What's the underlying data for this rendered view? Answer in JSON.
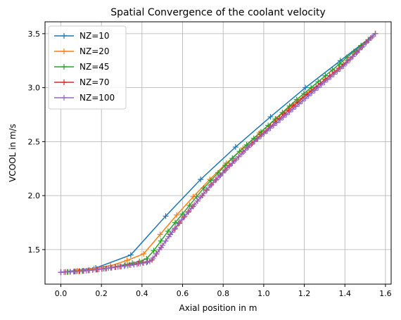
{
  "chart_data": {
    "type": "line",
    "title": "Spatial Convergence of the coolant velocity",
    "xlabel": "Axial position in m",
    "ylabel": "VCOOL in m/s",
    "xlim": [
      -0.078,
      1.628
    ],
    "ylim": [
      1.18,
      3.61
    ],
    "xticks": [
      0.0,
      0.2,
      0.4,
      0.6,
      0.8,
      1.0,
      1.2,
      1.4,
      1.6
    ],
    "xtick_labels": [
      "0.0",
      "0.2",
      "0.4",
      "0.6",
      "0.8",
      "1.0",
      "1.2",
      "1.4",
      "1.6"
    ],
    "yticks": [
      1.5,
      2.0,
      2.5,
      3.0,
      3.5
    ],
    "ytick_labels": [
      "1.5",
      "2.0",
      "2.5",
      "3.0",
      "3.5"
    ],
    "grid": true,
    "legend": "top-left",
    "marker": "+",
    "series": [
      {
        "name": "NZ=10",
        "color": "#1f77b4",
        "x": [
          0.0,
          0.1722,
          0.3444,
          0.5167,
          0.6889,
          0.8611,
          1.0333,
          1.2056,
          1.3778,
          1.55
        ],
        "y": [
          1.29,
          1.33,
          1.45,
          1.81,
          2.15,
          2.45,
          2.73,
          3.0,
          3.25,
          3.5
        ]
      },
      {
        "name": "NZ=20",
        "color": "#ff7f0e",
        "x": [
          0.0,
          0.0816,
          0.1632,
          0.2447,
          0.3263,
          0.4079,
          0.4895,
          0.5711,
          0.6526,
          0.7342,
          0.8158,
          0.8974,
          0.9789,
          1.0605,
          1.1421,
          1.2237,
          1.3053,
          1.3868,
          1.4684,
          1.55
        ],
        "y": [
          1.29,
          1.305,
          1.325,
          1.35,
          1.4,
          1.46,
          1.64,
          1.82,
          1.99,
          2.15,
          2.3,
          2.44,
          2.58,
          2.71,
          2.84,
          2.96,
          3.08,
          3.2,
          3.35,
          3.5
        ]
      },
      {
        "name": "NZ=45",
        "color": "#2ca02c",
        "x": [
          0.0,
          0.0352,
          0.0705,
          0.1057,
          0.1409,
          0.1761,
          0.2114,
          0.2466,
          0.2818,
          0.317,
          0.3523,
          0.3875,
          0.4227,
          0.458,
          0.4932,
          0.5284,
          0.5636,
          0.5989,
          0.6341,
          0.6693,
          0.7045,
          0.7398,
          0.775,
          0.8102,
          0.8455,
          0.8807,
          0.9159,
          0.9511,
          0.9864,
          1.0216,
          1.0568,
          1.092,
          1.1273,
          1.1625,
          1.1977,
          1.233,
          1.2682,
          1.3034,
          1.3386,
          1.3739,
          1.4091,
          1.4443,
          1.4795,
          1.5148,
          1.55
        ],
        "y": [
          1.29,
          1.293,
          1.297,
          1.302,
          1.308,
          1.315,
          1.323,
          1.332,
          1.345,
          1.36,
          1.375,
          1.39,
          1.415,
          1.49,
          1.58,
          1.67,
          1.75,
          1.83,
          1.91,
          1.99,
          2.07,
          2.14,
          2.21,
          2.28,
          2.345,
          2.41,
          2.47,
          2.53,
          2.59,
          2.65,
          2.71,
          2.77,
          2.83,
          2.89,
          2.945,
          3.0,
          3.055,
          3.11,
          3.165,
          3.22,
          3.28,
          3.335,
          3.39,
          3.445,
          3.5
        ]
      },
      {
        "name": "NZ=70",
        "color": "#d62728",
        "x": [
          0.0,
          0.0225,
          0.0449,
          0.0674,
          0.0899,
          0.1123,
          0.1348,
          0.1572,
          0.1797,
          0.2022,
          0.2246,
          0.2471,
          0.2696,
          0.292,
          0.3145,
          0.337,
          0.3594,
          0.3819,
          0.4043,
          0.4268,
          0.4493,
          0.4717,
          0.4942,
          0.5167,
          0.5391,
          0.5616,
          0.5841,
          0.6065,
          0.629,
          0.6514,
          0.6739,
          0.6964,
          0.7188,
          0.7413,
          0.7638,
          0.7862,
          0.8087,
          0.8312,
          0.8536,
          0.8761,
          0.8986,
          0.921,
          0.9435,
          0.9659,
          0.9884,
          1.0109,
          1.0333,
          1.0558,
          1.0783,
          1.1007,
          1.1232,
          1.1457,
          1.1681,
          1.1906,
          1.213,
          1.2355,
          1.258,
          1.2804,
          1.3029,
          1.3254,
          1.3478,
          1.3703,
          1.3928,
          1.4152,
          1.4377,
          1.4601,
          1.4826,
          1.5051,
          1.5275,
          1.55
        ],
        "y": [
          1.29,
          1.292,
          1.294,
          1.297,
          1.3,
          1.303,
          1.307,
          1.311,
          1.316,
          1.321,
          1.326,
          1.332,
          1.338,
          1.344,
          1.351,
          1.358,
          1.365,
          1.372,
          1.38,
          1.388,
          1.405,
          1.46,
          1.52,
          1.58,
          1.64,
          1.69,
          1.745,
          1.8,
          1.85,
          1.9,
          1.95,
          2.0,
          2.05,
          2.1,
          2.145,
          2.19,
          2.235,
          2.28,
          2.32,
          2.36,
          2.405,
          2.445,
          2.485,
          2.525,
          2.565,
          2.6,
          2.64,
          2.68,
          2.715,
          2.755,
          2.79,
          2.83,
          2.865,
          2.9,
          2.935,
          2.97,
          3.005,
          3.04,
          3.075,
          3.11,
          3.145,
          3.18,
          3.215,
          3.25,
          3.29,
          3.33,
          3.375,
          3.42,
          3.46,
          3.5
        ]
      },
      {
        "name": "NZ=100",
        "color": "#9467bd",
        "x": [
          0.0,
          0.0157,
          0.0313,
          0.047,
          0.0626,
          0.0783,
          0.0939,
          0.1096,
          0.1253,
          0.1409,
          0.1566,
          0.1722,
          0.1879,
          0.2035,
          0.2192,
          0.2348,
          0.2505,
          0.2662,
          0.2818,
          0.2975,
          0.3131,
          0.3288,
          0.3444,
          0.3601,
          0.3758,
          0.3914,
          0.4071,
          0.4227,
          0.4384,
          0.454,
          0.4697,
          0.4854,
          0.501,
          0.5167,
          0.5323,
          0.548,
          0.5636,
          0.5793,
          0.5949,
          0.6106,
          0.6263,
          0.6419,
          0.6576,
          0.6732,
          0.6889,
          0.7045,
          0.7202,
          0.7359,
          0.7515,
          0.7672,
          0.7828,
          0.7985,
          0.8141,
          0.8298,
          0.8455,
          0.8611,
          0.8768,
          0.8924,
          0.9081,
          0.9237,
          0.9394,
          0.9551,
          0.9707,
          0.9864,
          1.002,
          1.0177,
          1.0333,
          1.049,
          1.0646,
          1.0803,
          1.096,
          1.1116,
          1.1273,
          1.1429,
          1.1586,
          1.1742,
          1.1899,
          1.2056,
          1.2212,
          1.2369,
          1.2525,
          1.2682,
          1.2838,
          1.2995,
          1.3152,
          1.3308,
          1.3465,
          1.3621,
          1.3778,
          1.3934,
          1.4091,
          1.4247,
          1.4404,
          1.4561,
          1.4717,
          1.4874,
          1.503,
          1.5187,
          1.5343,
          1.55
        ],
        "y": [
          1.29,
          1.291,
          1.292,
          1.294,
          1.296,
          1.298,
          1.3,
          1.302,
          1.305,
          1.308,
          1.311,
          1.314,
          1.317,
          1.32,
          1.324,
          1.328,
          1.332,
          1.336,
          1.34,
          1.344,
          1.348,
          1.352,
          1.356,
          1.36,
          1.365,
          1.37,
          1.375,
          1.38,
          1.39,
          1.42,
          1.46,
          1.5,
          1.54,
          1.58,
          1.62,
          1.66,
          1.7,
          1.74,
          1.775,
          1.81,
          1.845,
          1.88,
          1.915,
          1.95,
          1.985,
          2.02,
          2.055,
          2.09,
          2.12,
          2.15,
          2.18,
          2.21,
          2.24,
          2.27,
          2.3,
          2.33,
          2.36,
          2.39,
          2.42,
          2.45,
          2.475,
          2.5,
          2.525,
          2.55,
          2.575,
          2.6,
          2.625,
          2.65,
          2.675,
          2.7,
          2.725,
          2.75,
          2.775,
          2.8,
          2.825,
          2.85,
          2.875,
          2.9,
          2.925,
          2.95,
          2.975,
          3.0,
          3.025,
          3.05,
          3.075,
          3.1,
          3.125,
          3.15,
          3.175,
          3.2,
          3.23,
          3.26,
          3.29,
          3.32,
          3.35,
          3.38,
          3.41,
          3.44,
          3.47,
          3.5
        ]
      }
    ]
  }
}
